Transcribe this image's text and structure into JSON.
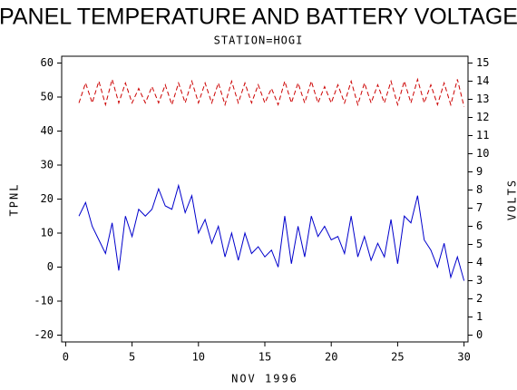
{
  "chart_data": {
    "type": "line",
    "title": "PANEL TEMPERATURE AND BATTERY VOLTAGE",
    "subtitle": "STATION=HOGI",
    "x_label": "NOV 1996",
    "y_label": "TPNL",
    "y2_label": "VOLTS",
    "x": [
      1,
      1.5,
      2,
      2.5,
      3,
      3.5,
      4,
      4.5,
      5,
      5.5,
      6,
      6.5,
      7,
      7.5,
      8,
      8.5,
      9,
      9.5,
      10,
      10.5,
      11,
      11.5,
      12,
      12.5,
      13,
      13.5,
      14,
      14.5,
      15,
      15.5,
      16,
      16.5,
      17,
      17.5,
      18,
      18.5,
      19,
      19.5,
      20,
      20.5,
      21,
      21.5,
      22,
      22.5,
      23,
      23.5,
      24,
      24.5,
      25,
      25.5,
      26,
      26.5,
      27,
      27.5,
      28,
      28.5,
      29,
      29.5,
      30
    ],
    "series": [
      {
        "color": "#0000cc",
        "style": "solid",
        "values": [
          15,
          19,
          12,
          8,
          4,
          13,
          -1,
          15,
          9,
          17,
          15,
          17,
          23,
          18,
          17,
          24,
          16,
          21,
          10,
          14,
          7,
          12,
          3,
          10,
          2,
          10,
          4,
          6,
          3,
          5,
          0,
          15,
          1,
          12,
          3,
          15,
          9,
          12,
          8,
          9,
          4,
          15,
          3,
          9,
          2,
          7,
          3,
          14,
          1,
          15,
          13,
          21,
          8,
          5,
          0,
          7,
          -3,
          3,
          -4
        ]
      },
      {
        "color": "#cc0000",
        "style": "dashed",
        "axis": "y2",
        "values": [
          12.8,
          13.9,
          12.8,
          14.0,
          12.7,
          14.1,
          12.8,
          13.9,
          12.8,
          13.6,
          12.8,
          13.7,
          12.8,
          13.8,
          12.7,
          13.9,
          12.8,
          14.0,
          12.8,
          13.9,
          12.8,
          13.9,
          12.7,
          14.0,
          12.8,
          13.9,
          12.8,
          13.8,
          12.8,
          13.6,
          12.7,
          14.0,
          12.8,
          13.9,
          12.8,
          14.0,
          12.8,
          13.7,
          12.8,
          13.8,
          12.8,
          14.0,
          12.7,
          13.9,
          12.8,
          13.8,
          12.8,
          14.0,
          12.7,
          14.0,
          12.8,
          14.1,
          12.8,
          13.8,
          12.7,
          13.9,
          12.7,
          14.1,
          12.6
        ]
      }
    ],
    "xlim": [
      -0.3,
      30.3
    ],
    "xticks": [
      0,
      5,
      10,
      15,
      20,
      25,
      30
    ],
    "ylim": [
      -22,
      62
    ],
    "yticks": [
      -20,
      -10,
      0,
      10,
      20,
      30,
      40,
      50,
      60
    ],
    "y2lim": [
      -0.375,
      15.375
    ],
    "y2ticks": [
      0,
      1,
      2,
      3,
      4,
      5,
      6,
      7,
      8,
      9,
      10,
      11,
      12,
      13,
      14,
      15
    ]
  }
}
